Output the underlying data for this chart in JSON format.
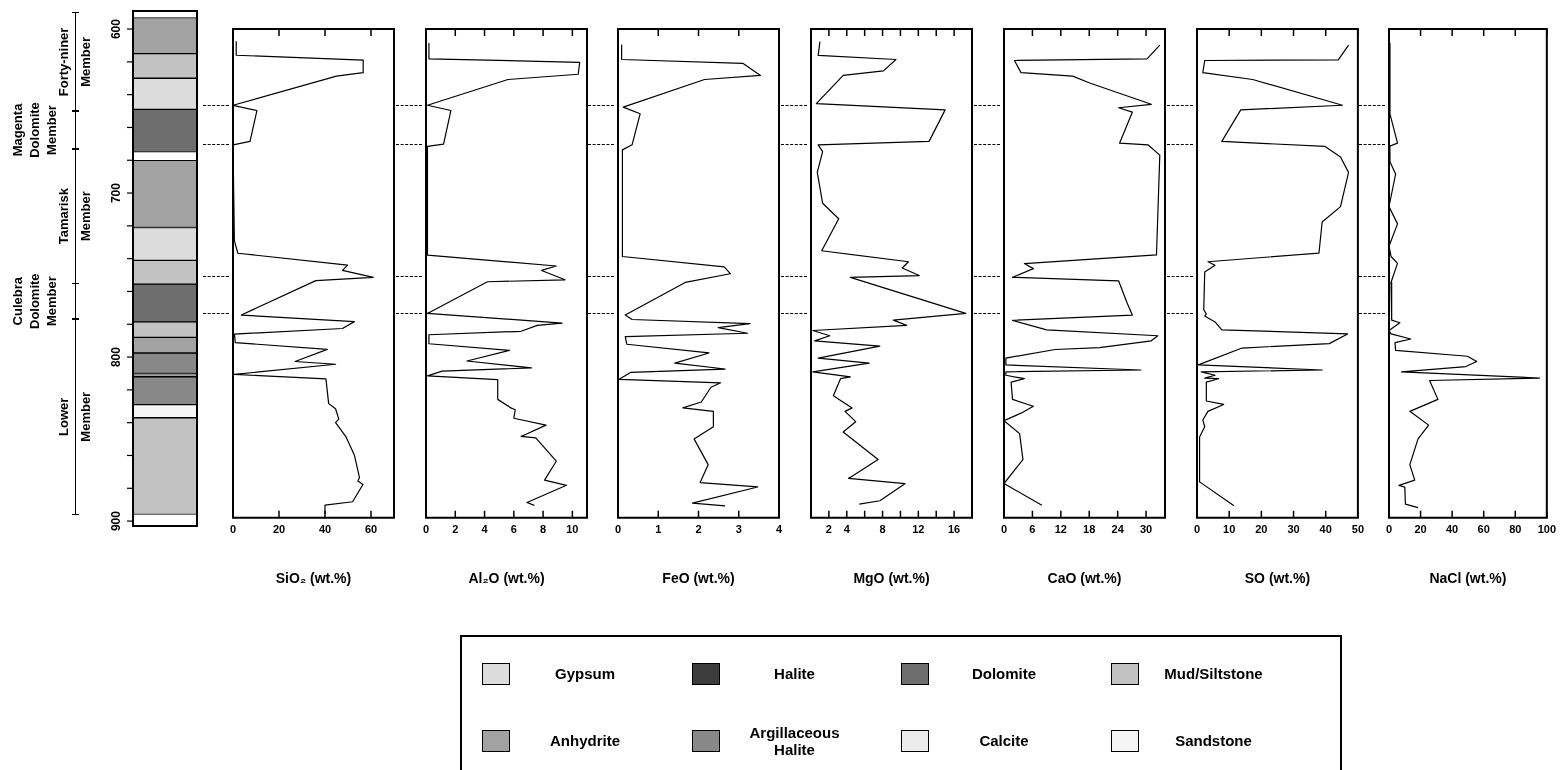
{
  "chart_data": [
    {
      "type": "bar",
      "categories": [
        null
      ],
      "ylim": [
        903,
        589
      ],
      "yticks": [
        600,
        {
          "value": 620,
          "label": null
        },
        {
          "value": 640,
          "label": null
        },
        {
          "value": 660,
          "label": null
        },
        {
          "value": 680,
          "label": null
        },
        700,
        {
          "value": 720,
          "label": null
        },
        {
          "value": 740,
          "label": null
        },
        {
          "value": 760,
          "label": null
        },
        {
          "value": 780,
          "label": null
        },
        800,
        {
          "value": 820,
          "label": null
        },
        {
          "value": 840,
          "label": null
        },
        {
          "value": 860,
          "label": null
        },
        {
          "value": 880,
          "label": null
        },
        900
      ],
      "tick_labels": "y",
      "annotations": [
        "Forty-niner Member",
        "Magenta Dolomite Member",
        "Tamarisk Member",
        "Culebra Dolomite Member",
        "Lower Member"
      ],
      "series": [
        {
          "color": "#a2a2a2",
          "base": [
            593
          ],
          "values": [
            22
          ]
        },
        {
          "color": "#c2c2c2",
          "base": [
            615
          ],
          "values": [
            15
          ]
        },
        {
          "color": "#dcdcdc",
          "base": [
            630
          ],
          "values": [
            19
          ]
        },
        {
          "color": "#6e6e6e",
          "base": [
            649
          ],
          "values": [
            26
          ]
        },
        {
          "color": "#a2a2a2",
          "base": [
            680
          ],
          "values": [
            41
          ]
        },
        {
          "color": "#dcdcdc",
          "base": [
            721
          ],
          "values": [
            20
          ]
        },
        {
          "color": "#c2c2c2",
          "base": [
            741
          ],
          "values": [
            14.5
          ]
        },
        {
          "color": "#6e6e6e",
          "base": [
            755.5
          ],
          "values": [
            23
          ]
        },
        {
          "color": "#c2c2c2",
          "base": [
            778.5
          ],
          "values": [
            9.5
          ]
        },
        {
          "color": "#a2a2a2",
          "base": [
            788
          ],
          "values": [
            9.5
          ]
        },
        {
          "color": "#888888",
          "base": [
            797.5
          ],
          "values": [
            12.5
          ]
        },
        {
          "color": "#a2a2a2",
          "base": [
            810
          ],
          "values": [
            2
          ]
        },
        {
          "color": "#888888",
          "base": [
            812
          ],
          "values": [
            17
          ]
        },
        {
          "color": "#f5f5f5",
          "base": [
            829
          ],
          "values": [
            8
          ]
        },
        {
          "color": "#c2c2c2",
          "base": [
            837
          ],
          "values": [
            59
          ]
        }
      ]
    },
    {
      "type": "line",
      "xlabel": "SiO₂ (wt.%)",
      "xlim": [
        0,
        70
      ],
      "xticks": [
        0,
        20,
        40,
        60
      ],
      "ylim": [
        898,
        600
      ],
      "yticks": [
        600,
        700,
        800
      ],
      "tick_labels": "x",
      "marker": "none",
      "color": "#000000",
      "x": [
        1.4,
        1.4,
        56.6,
        56.6,
        45,
        0,
        10.4,
        7.4,
        0,
        0.6,
        2.1,
        49.8,
        47.6,
        61,
        36,
        3.6,
        52.8,
        47.6,
        0.6,
        1,
        41,
        27,
        44.6,
        0.6,
        40.4,
        41.6,
        44.6,
        46,
        44.6,
        49,
        52.8,
        55,
        54.3,
        56.5,
        52,
        40,
        40
      ],
      "values": [
        607.7,
        616,
        619,
        626.6,
        628.7,
        646.5,
        649.7,
        668.5,
        670.6,
        729,
        736.7,
        744,
        747.2,
        751.4,
        753.4,
        774.4,
        778.4,
        782.6,
        786,
        791.2,
        795.3,
        802.7,
        804.4,
        810.6,
        813.3,
        828.4,
        831.5,
        837.8,
        840,
        848.3,
        859.9,
        873.5,
        875.6,
        877.7,
        888.2,
        890.3,
        895
      ]
    },
    {
      "type": "line",
      "xlabel": "Al₂O (wt.%)",
      "xlim": [
        0,
        11
      ],
      "xticks": [
        0,
        2,
        4,
        6,
        8,
        10
      ],
      "ylim": [
        898,
        600
      ],
      "yticks": [
        600,
        700,
        800
      ],
      "tick_labels": "x",
      "marker": "none",
      "color": "#000000",
      "x": [
        0.2,
        0.2,
        10.5,
        10.4,
        5.6,
        0.1,
        1.7,
        1.2,
        0.1,
        0.1,
        8.9,
        7.9,
        9.5,
        4.2,
        0.1,
        9.3,
        7.6,
        6.5,
        0.2,
        0.2,
        5.7,
        2.8,
        7.2,
        1.1,
        0.1,
        4.9,
        4.9,
        5.8,
        6.1,
        6,
        8.2,
        6.5,
        7.5,
        8.9,
        8.1,
        9.6,
        6.9,
        7.4
      ],
      "values": [
        608.8,
        618.2,
        620.3,
        627.6,
        630.8,
        646.5,
        649.7,
        670.2,
        671.6,
        737.8,
        744.5,
        747.2,
        752.9,
        754.1,
        773.4,
        779.3,
        780.7,
        784.3,
        786.4,
        791.9,
        795.9,
        802.4,
        806.6,
        808.6,
        811.5,
        813.8,
        825.8,
        831,
        832.1,
        837.3,
        841.5,
        848.4,
        849.3,
        863.5,
        875,
        878.2,
        888.7,
        890.4
      ]
    },
    {
      "type": "line",
      "xlabel": "FeO (wt.%)",
      "xlim": [
        0,
        4
      ],
      "xticks": [
        0,
        1,
        2,
        3,
        4
      ],
      "ylim": [
        898,
        600
      ],
      "yticks": [
        600,
        700,
        800
      ],
      "tick_labels": "x",
      "marker": "none",
      "color": "#000000",
      "x": [
        0.09,
        0.09,
        3.1,
        3.54,
        2.15,
        0.13,
        0.55,
        0.35,
        0.11,
        0.11,
        2.64,
        2.79,
        1.67,
        0.18,
        0.35,
        3.28,
        2.49,
        3.22,
        0.18,
        0.22,
        2.26,
        1.41,
        2.66,
        0.31,
        0.03,
        2.55,
        2.31,
        2.07,
        1.61,
        2.37,
        2.37,
        1.89,
        2.24,
        2.04,
        3.47,
        1.85,
        2.66
      ],
      "values": [
        609.8,
        618.6,
        620.9,
        628.3,
        630.8,
        647.6,
        651.7,
        670.6,
        673.7,
        738.7,
        745,
        749.2,
        754.5,
        774.4,
        777.1,
        779.6,
        782.1,
        785.5,
        787.6,
        792.2,
        797.5,
        803.7,
        807.3,
        809.4,
        813.6,
        815.7,
        818.4,
        827.4,
        831,
        833.1,
        842.5,
        849.9,
        865.6,
        876.5,
        879.2,
        889.1,
        890.7
      ]
    },
    {
      "type": "line",
      "xlabel": "MgO (wt.%)",
      "xlim": [
        0,
        18
      ],
      "xticks": [
        2,
        4,
        {
          "value": 6,
          "label": null
        },
        8,
        {
          "value": 10,
          "label": null
        },
        12,
        {
          "value": 14,
          "label": null
        },
        16
      ],
      "ylim": [
        898,
        600
      ],
      "yticks": [
        600,
        700,
        800
      ],
      "tick_labels": "x",
      "marker": "none",
      "color": "#000000",
      "x": [
        1,
        0.8,
        9.5,
        8.1,
        3.6,
        0.6,
        15,
        13.2,
        0.8,
        1.3,
        0.7,
        1.3,
        3.1,
        1.2,
        10.9,
        10.2,
        12.1,
        4.4,
        17.3,
        9.2,
        10.7,
        0.2,
        2.1,
        0.4,
        7.7,
        0.8,
        6.5,
        0.2,
        4.4,
        3.3,
        2.5,
        4,
        4.6,
        3.8,
        5,
        3.6,
        7.5,
        4.2,
        10.5,
        7.7,
        5.4
      ],
      "values": [
        607.7,
        616.1,
        618.6,
        625.5,
        628.3,
        645.5,
        649.3,
        668.5,
        670.6,
        674.8,
        687.4,
        706.2,
        715.7,
        735.2,
        741.9,
        745.7,
        750.3,
        751.4,
        773.4,
        777.5,
        780.7,
        783.8,
        787,
        790.1,
        793.3,
        800.6,
        803.7,
        809,
        812.1,
        813.2,
        823.6,
        828.9,
        831,
        833.1,
        839.4,
        845.7,
        862.5,
        874,
        877.2,
        887.6,
        889.7
      ]
    },
    {
      "type": "line",
      "xlabel": "CaO (wt.%)",
      "xlim": [
        0,
        34
      ],
      "xticks": [
        0,
        6,
        12,
        18,
        24,
        30
      ],
      "ylim": [
        898,
        600
      ],
      "yticks": [
        600,
        700,
        800
      ],
      "tick_labels": "x",
      "marker": "none",
      "color": "#000000",
      "x": [
        32.9,
        30.2,
        2.2,
        3.6,
        14.5,
        18.1,
        31.1,
        24.2,
        27.1,
        24.4,
        30.4,
        32.9,
        32.2,
        4.3,
        6.2,
        1.8,
        24.2,
        26,
        27.1,
        1.8,
        9,
        32.5,
        31.1,
        20.2,
        10.8,
        0.4,
        0.4,
        28.9,
        0.4,
        0.4,
        4.3,
        1.5,
        1.8,
        6.2,
        3.6,
        0,
        3.3,
        4,
        0,
        8
      ],
      "values": [
        609.8,
        618.2,
        619.2,
        626.6,
        628.7,
        632.9,
        645.9,
        648,
        650.7,
        669.6,
        670.6,
        676.9,
        737.7,
        743,
        746.1,
        751.4,
        753.5,
        767.1,
        774.4,
        777.6,
        783.4,
        787,
        790.1,
        794.3,
        795.4,
        800.6,
        804.8,
        807.9,
        809,
        811.1,
        813.2,
        815.3,
        825.8,
        830,
        834.2,
        838.8,
        846.7,
        862.5,
        877.1,
        890.4
      ]
    },
    {
      "type": "line",
      "xlabel": "SO (wt.%)",
      "xlim": [
        0,
        50
      ],
      "xticks": [
        0,
        10,
        20,
        30,
        40,
        50
      ],
      "ylim": [
        898,
        600
      ],
      "yticks": [
        600,
        700,
        800
      ],
      "tick_labels": "x",
      "marker": "none",
      "color": "#000000",
      "x": [
        47.1,
        43.9,
        2.4,
        1.8,
        17.3,
        45.2,
        13.6,
        7.7,
        39.8,
        44.6,
        47.1,
        44.6,
        38.9,
        37.9,
        3.4,
        5.6,
        2.4,
        2.1,
        2.9,
        2.4,
        5.6,
        7.7,
        46.8,
        41.1,
        14,
        0.4,
        38.9,
        1.3,
        5.6,
        2.4,
        6.7,
        2.9,
        2.9,
        8.3,
        3.4,
        1.8,
        2.4,
        0.8,
        0.8,
        11.5
      ],
      "values": [
        609.8,
        618.8,
        619.2,
        626.6,
        630.8,
        646.5,
        649.3,
        668.5,
        671.6,
        678,
        687.4,
        708.3,
        717.7,
        736.6,
        741.9,
        744,
        748.2,
        771.2,
        773.8,
        775,
        778.6,
        783.4,
        785.9,
        791.8,
        794.5,
        804.8,
        807.9,
        809,
        811.1,
        812.8,
        813.2,
        815.3,
        826.8,
        828.9,
        833.1,
        838.4,
        842.5,
        848.8,
        876.1,
        890.7
      ]
    },
    {
      "type": "line",
      "xlabel": "NaCl (wt.%)",
      "xlim": [
        0,
        100
      ],
      "xticks": [
        0,
        20,
        40,
        60,
        80,
        100
      ],
      "ylim": [
        898,
        600
      ],
      "yticks": [
        600,
        700,
        800
      ],
      "tick_labels": "x",
      "marker": "none",
      "color": "#000000",
      "x": [
        0.6,
        0.6,
        5.4,
        0,
        0.6,
        4.2,
        0,
        5.4,
        0,
        1.3,
        5.4,
        1.3,
        1.7,
        6.9,
        0,
        1.3,
        13.8,
        3.8,
        4.2,
        49.7,
        55.6,
        48.7,
        7.9,
        95.3,
        25.7,
        31,
        13.2,
        25.1,
        18.4,
        13.2,
        16.3,
        6.3,
        10,
        10.4,
        18.4
      ],
      "values": [
        608.8,
        651.7,
        669.6,
        671.6,
        681,
        688.4,
        708.3,
        718.8,
        732.4,
        738.7,
        742.9,
        754.4,
        777.5,
        779.1,
        783.8,
        785.9,
        789,
        791.2,
        795.9,
        799.5,
        802.7,
        805.8,
        809,
        812.8,
        814.3,
        825.8,
        833.1,
        841.5,
        849.9,
        865.6,
        875,
        878.2,
        879.3,
        889.7,
        891.8
      ]
    },
    {
      "type": "other",
      "annotations": [
        "Gypsum",
        "Halite",
        "Dolomite",
        "Mud/Siltstone",
        "Anhydrite",
        "Argillaceous Halite",
        "Calcite",
        "Sandstone"
      ],
      "colors": [
        "#dcdcdc",
        "#3c3c3c",
        "#6e6e6e",
        "#c2c2c2",
        "#a2a2a2",
        "#888888",
        "#ececec",
        "#f5f5f5"
      ]
    }
  ]
}
